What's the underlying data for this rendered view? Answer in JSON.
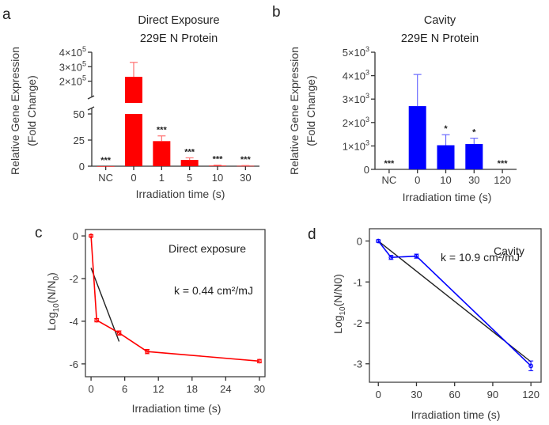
{
  "chart_data": [
    {
      "panel": "a",
      "type": "bar",
      "title_lines": [
        "Direct Exposure",
        "229E N Protein"
      ],
      "xlabel": "Irradiation time (s)",
      "ylabel_lines": [
        "Relative Gene Expression",
        "(Fold Change)"
      ],
      "color": "#ff0000",
      "categories": [
        "NC",
        "0",
        "1",
        "5",
        "10",
        "30"
      ],
      "values": [
        0,
        230000,
        24,
        6,
        0.5,
        0.3
      ],
      "errors": [
        0,
        100000,
        5,
        2,
        0.5,
        0.3
      ],
      "significance": [
        "***",
        "",
        "***",
        "***",
        "***",
        "***"
      ],
      "axis_break": true,
      "lower_range": [
        0,
        50
      ],
      "upper_range": [
        0,
        400000
      ],
      "lower_ticks": [
        "0",
        "25",
        "50"
      ],
      "upper_ticks": [
        {
          "value": 200000,
          "base": "2×10",
          "exp": "5"
        },
        {
          "value": 300000,
          "base": "3×10",
          "exp": "5"
        },
        {
          "value": 400000,
          "base": "4×10",
          "exp": "5"
        }
      ]
    },
    {
      "panel": "b",
      "type": "bar",
      "title_lines": [
        "Cavity",
        "229E N Protein"
      ],
      "xlabel": "Irradiation time (s)",
      "ylabel_lines": [
        "Relative Gene Expression",
        "(Fold Change)"
      ],
      "color": "#0000ff",
      "categories": [
        "NC",
        "0",
        "10",
        "30",
        "120"
      ],
      "values": [
        0,
        2700,
        1030,
        1080,
        0
      ],
      "errors": [
        0,
        1350,
        450,
        250,
        0
      ],
      "significance": [
        "***",
        "",
        "*",
        "*",
        "***"
      ],
      "ylim": [
        0,
        5000
      ],
      "yticks": [
        {
          "value": 0,
          "base": "0",
          "exp": ""
        },
        {
          "value": 1000,
          "base": "1×10",
          "exp": "3"
        },
        {
          "value": 2000,
          "base": "2×10",
          "exp": "3"
        },
        {
          "value": 3000,
          "base": "3×10",
          "exp": "3"
        },
        {
          "value": 4000,
          "base": "4×10",
          "exp": "3"
        },
        {
          "value": 5000,
          "base": "5×10",
          "exp": "3"
        }
      ]
    },
    {
      "panel": "c",
      "type": "line",
      "annotation_title": "Direct exposure",
      "annotation_k": "k = 0.44 cm²/mJ",
      "xlabel": "Irradiation time (s)",
      "ylabel": {
        "base": "Log",
        "sub": "10",
        "rest": "(N/N",
        "sub2": "0",
        "end": ")"
      },
      "xlim": [
        -1,
        31
      ],
      "ylim": [
        -6.6,
        0.3
      ],
      "xticks": [
        0,
        6,
        12,
        18,
        24,
        30
      ],
      "yticks": [
        0,
        -2,
        -4,
        -6
      ],
      "series": [
        {
          "color": "#ff0000",
          "x": [
            0,
            1,
            5,
            10,
            30
          ],
          "y": [
            0,
            -3.95,
            -4.55,
            -5.42,
            -5.87
          ],
          "err": [
            0.05,
            0.08,
            0.1,
            0.1,
            0.08
          ]
        }
      ],
      "fit": {
        "color": "#222222",
        "x": [
          0,
          5
        ],
        "y": [
          -1.5,
          -4.95
        ]
      }
    },
    {
      "panel": "d",
      "type": "line",
      "annotation_title": "Cavity",
      "annotation_k": "k = 10.9 cm²/mJ",
      "xlabel": "Irradiation time (s)",
      "ylabel": {
        "base": "Log",
        "sub": "10",
        "rest": "(N/N0)",
        "sub2": "",
        "end": ""
      },
      "xlim": [
        -7,
        128
      ],
      "ylim": [
        -3.45,
        0.3
      ],
      "xticks": [
        0,
        30,
        60,
        90,
        120
      ],
      "yticks": [
        0,
        -1,
        -2,
        -3
      ],
      "series": [
        {
          "color": "#0000ff",
          "x": [
            0,
            10,
            30,
            120
          ],
          "y": [
            0,
            -0.4,
            -0.37,
            -3.05
          ],
          "err": [
            0.03,
            0.05,
            0.05,
            0.12
          ]
        }
      ],
      "fit": {
        "color": "#222222",
        "x": [
          0,
          120
        ],
        "y": [
          0,
          -2.95
        ]
      }
    }
  ]
}
